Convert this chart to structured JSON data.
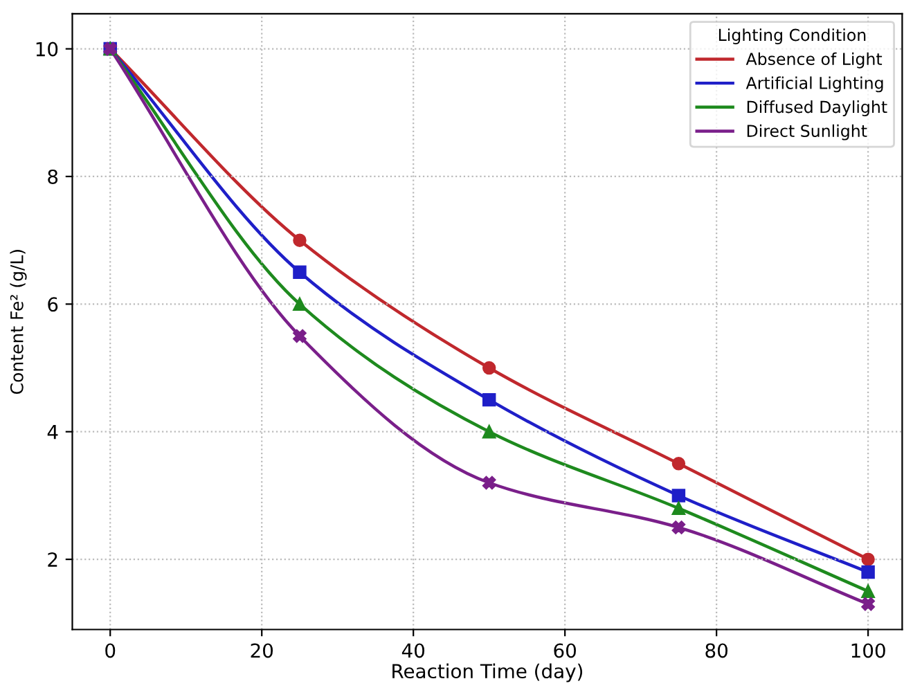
{
  "chart_data": {
    "type": "line",
    "xlabel": "Reaction Time (day)",
    "ylabel": "Content Fe² (g/L)",
    "legend_title": "Lighting Condition",
    "x": [
      0,
      25,
      50,
      75,
      100
    ],
    "series": [
      {
        "name": "Absence of Light",
        "color": "#c0282d",
        "marker": "circle",
        "values": [
          10,
          7,
          5,
          3.5,
          2
        ]
      },
      {
        "name": "Artificial Lighting",
        "color": "#1f1fc8",
        "marker": "square",
        "values": [
          10,
          6.5,
          4.5,
          3,
          1.8
        ]
      },
      {
        "name": "Diffused Daylight",
        "color": "#1e8a1e",
        "marker": "triangle",
        "values": [
          10,
          6,
          4,
          2.8,
          1.5
        ]
      },
      {
        "name": "Direct Sunlight",
        "color": "#7a1f8a",
        "marker": "cross",
        "values": [
          10,
          5.5,
          3.2,
          2.5,
          1.3
        ]
      }
    ],
    "xlim": [
      -5,
      104.5
    ],
    "ylim": [
      0.9,
      10.55
    ],
    "xticks": [
      0,
      20,
      40,
      60,
      80,
      100
    ],
    "yticks": [
      2,
      4,
      6,
      8,
      10
    ],
    "grid": true,
    "legend": "top right",
    "line_style": "solid"
  }
}
